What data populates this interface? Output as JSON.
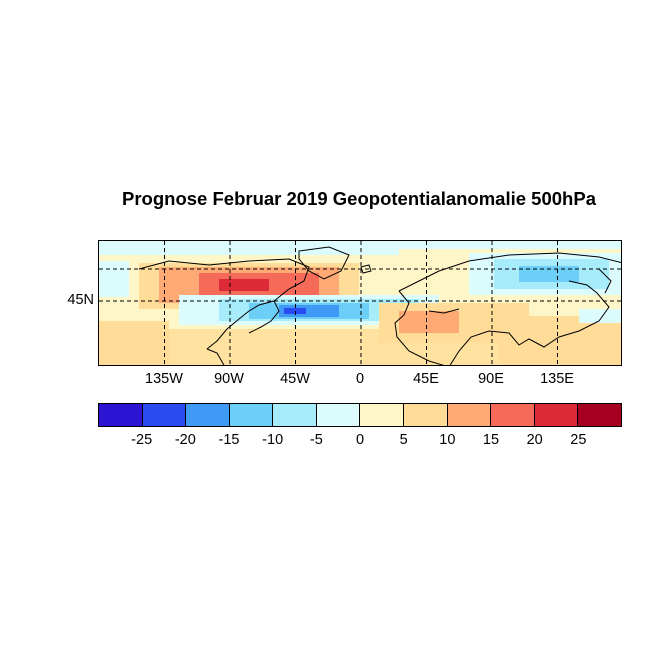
{
  "title": "Prognose Februar 2019 Geopotentialanomalie 500hPa",
  "map": {
    "lon_range": [
      -180,
      180
    ],
    "lat_range": [
      15,
      90
    ],
    "lat_label": "45N",
    "lon_labels": [
      "135W",
      "90W",
      "45W",
      "0",
      "45E",
      "90E",
      "135E"
    ],
    "lon_ticks": [
      -135,
      -90,
      -45,
      0,
      45,
      90,
      135
    ],
    "lat_ticks": [
      45,
      75
    ],
    "grid_style": "dashed"
  },
  "colorbar": {
    "colors": [
      "#2d14d2",
      "#2a4bef",
      "#3e9af5",
      "#6dcff8",
      "#a6ecfb",
      "#dcfbfd",
      "#fff6c8",
      "#ffdd99",
      "#ffaa74",
      "#f66a5a",
      "#dc2b37",
      "#a5001f"
    ],
    "labels": [
      "-25",
      "-20",
      "-15",
      "-10",
      "-5",
      "0",
      "5",
      "10",
      "15",
      "20",
      "25"
    ]
  }
}
